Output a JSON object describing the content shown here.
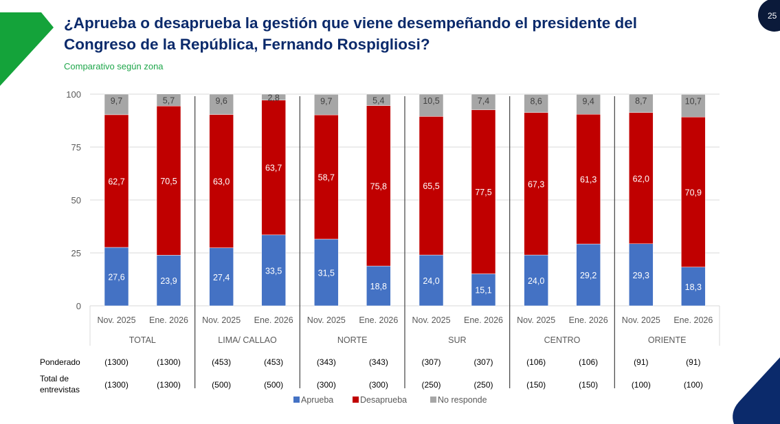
{
  "header": {
    "title_line1": "¿Aprueba o desaprueba la gestión que viene desempeñando el presidente del",
    "title_line2": "Congreso de la República, Fernando Rospigliosi?",
    "subtitle": "Comparativo según zona",
    "page_number": "25"
  },
  "colors": {
    "aprueba": "#4472c4",
    "desaprueba": "#c00000",
    "no_responde": "#a6a6a6",
    "title": "#0b2a6b",
    "accent_green": "#1ea64a",
    "navy": "#0b2a6b"
  },
  "chart_data": {
    "type": "bar",
    "stacked": true,
    "ylim": [
      0,
      100
    ],
    "yticks": [
      "0",
      "25",
      "50",
      "75",
      "100"
    ],
    "grid": true,
    "legend_position": "bottom",
    "categories": [
      "Nov. 2025",
      "Ene. 2026",
      "Nov. 2025",
      "Ene. 2026",
      "Nov. 2025",
      "Ene. 2026",
      "Nov. 2025",
      "Ene. 2026",
      "Nov. 2025",
      "Ene. 2026",
      "Nov. 2025",
      "Ene. 2026"
    ],
    "groups": [
      "TOTAL",
      "LIMA/ CALLAO",
      "NORTE",
      "SUR",
      "CENTRO",
      "ORIENTE"
    ],
    "series": [
      {
        "name": "Aprueba",
        "values": [
          27.6,
          23.9,
          27.4,
          33.5,
          31.5,
          18.8,
          24.0,
          15.1,
          24.0,
          29.2,
          29.3,
          18.3
        ],
        "labels": [
          "27,6",
          "23,9",
          "27,4",
          "33,5",
          "31,5",
          "18,8",
          "24,0",
          "15,1",
          "24,0",
          "29,2",
          "29,3",
          "18,3"
        ]
      },
      {
        "name": "Desaprueba",
        "values": [
          62.7,
          70.5,
          63.0,
          63.7,
          58.7,
          75.8,
          65.5,
          77.5,
          67.3,
          61.3,
          62.0,
          70.9
        ],
        "labels": [
          "62,7",
          "70,5",
          "63,0",
          "63,7",
          "58,7",
          "75,8",
          "65,5",
          "77,5",
          "67,3",
          "61,3",
          "62,0",
          "70,9"
        ]
      },
      {
        "name": "No responde",
        "values": [
          9.7,
          5.7,
          9.6,
          2.8,
          9.7,
          5.4,
          10.5,
          7.4,
          8.6,
          9.4,
          8.7,
          10.7
        ],
        "labels": [
          "9,7",
          "5,7",
          "9,6",
          "2,8",
          "9,7",
          "5,4",
          "10,5",
          "7,4",
          "8,6",
          "9,4",
          "8,7",
          "10,7"
        ]
      }
    ]
  },
  "table": {
    "rows": [
      {
        "label": "Ponderado",
        "values": [
          "(1300)",
          "(1300)",
          "(453)",
          "(453)",
          "(343)",
          "(343)",
          "(307)",
          "(307)",
          "(106)",
          "(106)",
          "(91)",
          "(91)"
        ]
      },
      {
        "label_line1": "Total de",
        "label_line2": "entrevistas",
        "values": [
          "(1300)",
          "(1300)",
          "(500)",
          "(500)",
          "(300)",
          "(300)",
          "(250)",
          "(250)",
          "(150)",
          "(150)",
          "(100)",
          "(100)"
        ]
      }
    ]
  }
}
